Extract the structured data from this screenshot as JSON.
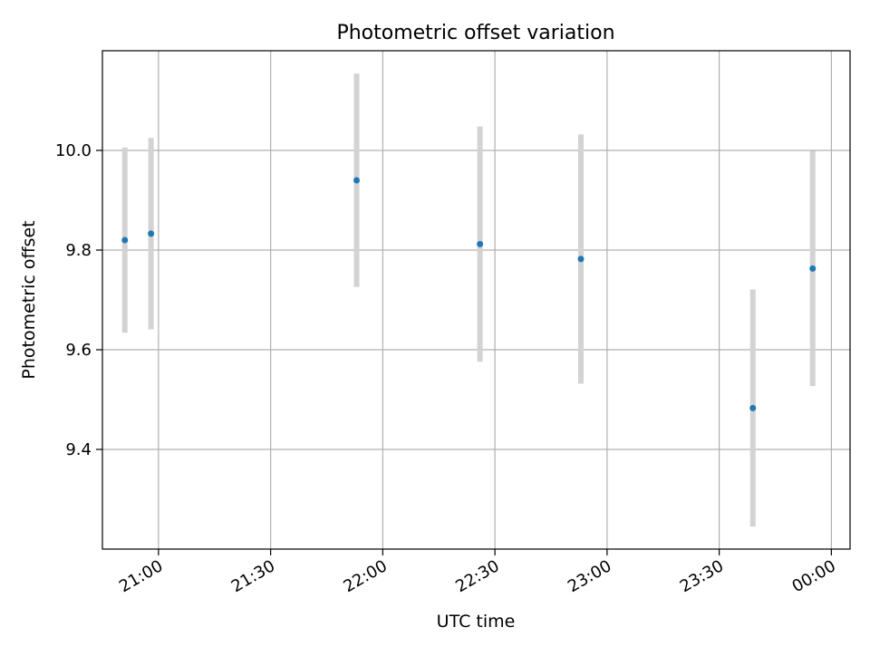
{
  "chart_data": {
    "type": "scatter",
    "title": "Photometric offset variation",
    "xlabel": "UTC time",
    "ylabel": "Photometric offset",
    "x_type": "time",
    "xlim": [
      "20:45",
      "00:05"
    ],
    "ylim": [
      9.2,
      10.2
    ],
    "x_ticks": [
      "21:00",
      "21:30",
      "22:00",
      "22:30",
      "23:00",
      "23:30",
      "00:00"
    ],
    "y_ticks": [
      "9.4",
      "9.6",
      "9.8",
      "10.0"
    ],
    "grid": true,
    "series": [
      {
        "marker_color": "#1f77b4",
        "errorbar_color": "#d3d3d3",
        "points": [
          {
            "time": "20:51",
            "y": 9.82,
            "err": 0.186
          },
          {
            "time": "20:58",
            "y": 9.833,
            "err": 0.192
          },
          {
            "time": "21:53",
            "y": 9.94,
            "err": 0.214
          },
          {
            "time": "22:26",
            "y": 9.812,
            "err": 0.236
          },
          {
            "time": "22:53",
            "y": 9.782,
            "err": 0.25
          },
          {
            "time": "23:39",
            "y": 9.483,
            "err": 0.238
          },
          {
            "time": "23:55",
            "y": 9.763,
            "err": 0.236
          }
        ]
      }
    ]
  }
}
